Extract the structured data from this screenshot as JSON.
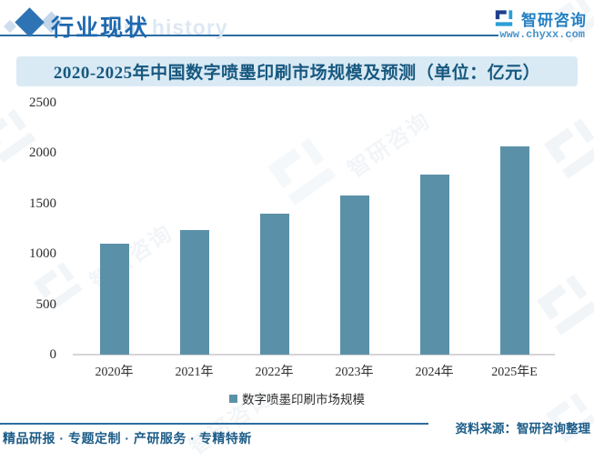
{
  "header": {
    "title": "行业现状",
    "watermark_en": "ent history",
    "brand_name": "智研咨询",
    "brand_url": "www.chyxx.com"
  },
  "watermark": {
    "text": "智研咨询"
  },
  "chart_data": {
    "type": "bar",
    "title": "2020-2025年中国数字喷墨印刷市场规模及预测（单位：亿元）",
    "categories": [
      "2020年",
      "2021年",
      "2022年",
      "2023年",
      "2024年",
      "2025年E"
    ],
    "values": [
      1105,
      1240,
      1395,
      1580,
      1785,
      2070
    ],
    "series_name": "数字喷墨印刷市场规模",
    "unit": "亿元",
    "xlabel": "",
    "ylabel": "",
    "ylim": [
      0,
      2500
    ],
    "yticks": [
      0,
      500,
      1000,
      1500,
      2000,
      2500
    ],
    "grid": false,
    "legend_position": "bottom",
    "bar_color": "#5b91a8"
  },
  "footer": {
    "tagline": "精品研报 · 专题定制 · 产研服务 · 专精特新",
    "source": "资料来源：智研咨询整理"
  }
}
